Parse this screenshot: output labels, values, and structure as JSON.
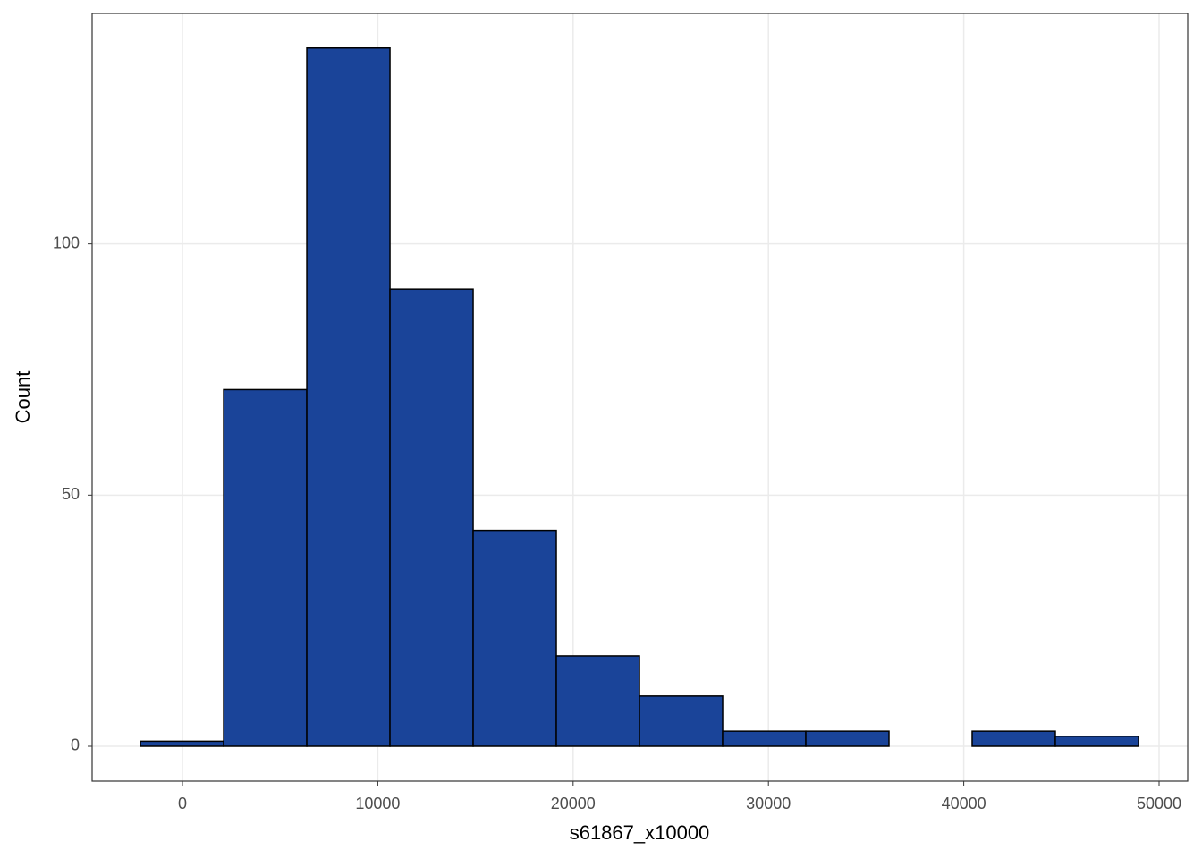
{
  "chart_data": {
    "type": "histogram",
    "x_label": "s61867_x10000",
    "y_label": "Count",
    "bins": [
      -2150,
      2108,
      6366,
      10624,
      14882,
      19140,
      23398,
      27656,
      31914,
      36172,
      40430,
      44688,
      48946
    ],
    "values": [
      1,
      71,
      139,
      91,
      43,
      18,
      10,
      3,
      3,
      0,
      3,
      2
    ],
    "color": "#1a4499",
    "xlim": [
      -4625,
      51465
    ],
    "ylim": [
      -6.95,
      145.9
    ],
    "xticks": [
      0,
      10000,
      20000,
      30000,
      40000,
      50000
    ],
    "yticks": [
      0,
      50,
      100
    ],
    "grid": true
  }
}
